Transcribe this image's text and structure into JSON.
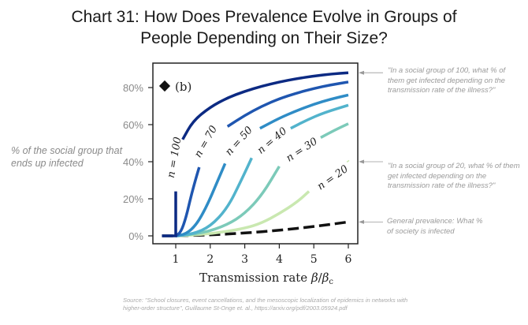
{
  "title_line1": "Chart 31: How Does Prevalence Evolve in Groups of",
  "title_line2": "People Depending on Their Size?",
  "ylabel": "% of the social group that ends up infected",
  "annotations": [
    {
      "text": "\"In a social group of 100, what % of them get infected depending on the transmission rate of the illness?\"",
      "target": "n = 100"
    },
    {
      "text": "\"In a social group of 20, what % of them get infected depending on the transmission rate of the illness?\"",
      "target": "n = 20"
    },
    {
      "text": "General prevalence: What % of society is infected",
      "target": "general"
    }
  ],
  "source": "Source: \"School closures, event cancellations, and the mesoscopic localization of epidemics in networks with higher-order structure\", Guillaume St-Onge et. al., https://arxiv.org/pdf/2003.05924.pdf",
  "panel_label": "(b)",
  "chart_data": {
    "type": "line",
    "title": "Chart 31: How Does Prevalence Evolve in Groups of People Depending on Their Size?",
    "xlabel": "Transmission rate β/βc",
    "ylabel": "% of the social group that ends up infected",
    "xlim": [
      0.45,
      6.2
    ],
    "ylim": [
      -2,
      92
    ],
    "xticks": [
      1,
      2,
      3,
      4,
      5,
      6
    ],
    "xtick_labels": [
      "1",
      "2",
      "3",
      "4",
      "5",
      "6"
    ],
    "yticks": [
      0,
      20,
      40,
      60,
      80
    ],
    "ytick_labels": [
      "0%",
      "20%",
      "40%",
      "60%",
      "80%"
    ],
    "grid": false,
    "series": [
      {
        "name": "n = 100",
        "color": "#0c2a83",
        "label_pos": [
          1.05,
          42
        ],
        "points": [
          [
            0.6,
            0
          ],
          [
            1.0,
            0
          ],
          [
            1.0,
            24
          ],
          [
            1.0,
            24
          ]
        ],
        "gap": true,
        "upper": [
          [
            1.2,
            52
          ],
          [
            1.5,
            62
          ],
          [
            2,
            69.5
          ],
          [
            2.5,
            74.5
          ],
          [
            3,
            78
          ],
          [
            3.5,
            80.8
          ],
          [
            4,
            83
          ],
          [
            4.5,
            84.8
          ],
          [
            5,
            86.2
          ],
          [
            5.5,
            87.3
          ],
          [
            6,
            88
          ]
        ]
      },
      {
        "name": "n = 70",
        "color": "#1f56b0",
        "label_pos": [
          1.95,
          50
        ],
        "points": [
          [
            1.0,
            0
          ],
          [
            1.15,
            2
          ],
          [
            1.3,
            10
          ],
          [
            1.45,
            22
          ],
          [
            1.6,
            32
          ],
          [
            1.68,
            37
          ]
        ],
        "upper": [
          [
            2.5,
            59
          ],
          [
            3,
            65
          ],
          [
            3.5,
            70
          ],
          [
            4,
            74
          ],
          [
            4.5,
            77
          ],
          [
            5,
            79.5
          ],
          [
            5.5,
            81.5
          ],
          [
            6,
            83
          ]
        ]
      },
      {
        "name": "n = 50",
        "color": "#2f8cc6",
        "label_pos": [
          2.9,
          50
        ],
        "points": [
          [
            1.0,
            0
          ],
          [
            1.3,
            1
          ],
          [
            1.6,
            6
          ],
          [
            1.9,
            16
          ],
          [
            2.2,
            29
          ],
          [
            2.43,
            39
          ]
        ],
        "upper": [
          [
            3.44,
            58
          ],
          [
            4,
            63.5
          ],
          [
            4.5,
            67.5
          ],
          [
            5,
            71
          ],
          [
            5.5,
            73.8
          ],
          [
            6,
            76
          ]
        ]
      },
      {
        "name": "n = 40",
        "color": "#52b3cc",
        "label_pos": [
          3.85,
          50
        ],
        "points": [
          [
            1.0,
            0
          ],
          [
            1.5,
            1
          ],
          [
            2,
            5
          ],
          [
            2.5,
            15
          ],
          [
            2.9,
            30
          ],
          [
            3.2,
            42
          ]
        ],
        "upper": [
          [
            4.33,
            58
          ],
          [
            4.8,
            62.5
          ],
          [
            5.3,
            66.5
          ],
          [
            6,
            70.5
          ]
        ]
      },
      {
        "name": "n = 30",
        "color": "#7ccab9",
        "label_pos": [
          4.7,
          45
        ],
        "points": [
          [
            1.0,
            0
          ],
          [
            1.8,
            1.5
          ],
          [
            2.5,
            6
          ],
          [
            3,
            12
          ],
          [
            3.5,
            22
          ],
          [
            4.0,
            37.5
          ]
        ],
        "upper": [
          [
            5.2,
            53
          ],
          [
            5.6,
            57
          ],
          [
            6,
            60.5
          ]
        ]
      },
      {
        "name": "n = 20",
        "color": "#c9e8b0",
        "label_pos": [
          5.6,
          30
        ],
        "points": [
          [
            1.0,
            0
          ],
          [
            2,
            1
          ],
          [
            3,
            4
          ],
          [
            3.5,
            7
          ],
          [
            4,
            12
          ],
          [
            4.5,
            18
          ],
          [
            4.86,
            24
          ]
        ],
        "upper": [
          [
            5.98,
            40.5
          ],
          [
            6.0,
            40
          ]
        ]
      },
      {
        "name": "General prevalence",
        "color": "#111111",
        "dashed": true,
        "points": [
          [
            0.6,
            0
          ],
          [
            1,
            0
          ],
          [
            2,
            0.5
          ],
          [
            3,
            1.5
          ],
          [
            4,
            3
          ],
          [
            5,
            5
          ],
          [
            6,
            7.5
          ]
        ]
      }
    ]
  }
}
